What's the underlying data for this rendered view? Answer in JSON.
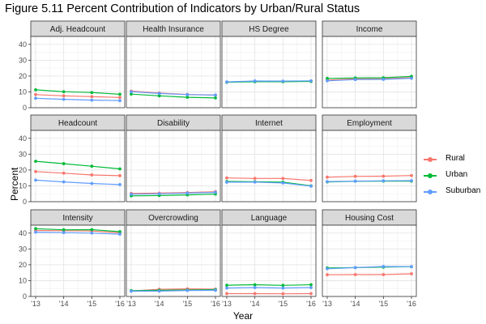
{
  "title": "Figure 5.11 Percent Contribution of Indicators by Urban/Rural Status",
  "colors": {
    "Rural": "#F8766D",
    "Urban": "#00BA38",
    "Suburban": "#619CFF"
  },
  "legend": [
    {
      "name": "Rural",
      "color": "#F8766D"
    },
    {
      "name": "Urban",
      "color": "#00BA38"
    },
    {
      "name": "Suburban",
      "color": "#619CFF"
    }
  ],
  "chart_data": {
    "type": "line",
    "facet": "grid 3x4",
    "xlabel": "Year",
    "ylabel": "Percent",
    "x": [
      "'13",
      "'14",
      "'15",
      "'16"
    ],
    "xticks": [
      "'13",
      "'14",
      "'15",
      "'16"
    ],
    "ylim": [
      0,
      45
    ],
    "yticks": [
      "0",
      "10",
      "20",
      "30",
      "40"
    ],
    "grid": true,
    "legend_position": "right",
    "panels": [
      {
        "name": "Adj. Headcount",
        "series": [
          {
            "name": "Rural",
            "values": [
              8.3,
              7.5,
              7.0,
              6.5
            ]
          },
          {
            "name": "Urban",
            "values": [
              11.3,
              10.1,
              9.6,
              8.5
            ]
          },
          {
            "name": "Suburban",
            "values": [
              6.0,
              5.3,
              4.8,
              4.5
            ]
          }
        ]
      },
      {
        "name": "Health Insurance",
        "series": [
          {
            "name": "Rural",
            "values": [
              10.5,
              9.3,
              8.4,
              8.0
            ]
          },
          {
            "name": "Urban",
            "values": [
              8.6,
              7.5,
              6.6,
              6.2
            ]
          },
          {
            "name": "Suburban",
            "values": [
              10.1,
              9.0,
              8.3,
              8.0
            ]
          }
        ]
      },
      {
        "name": "HS Degree",
        "series": [
          {
            "name": "Rural",
            "values": [
              16.2,
              16.6,
              16.6,
              16.8
            ]
          },
          {
            "name": "Urban",
            "values": [
              16.1,
              16.4,
              16.4,
              16.6
            ]
          },
          {
            "name": "Suburban",
            "values": [
              16.3,
              16.9,
              16.8,
              17.0
            ]
          }
        ]
      },
      {
        "name": "Income",
        "series": [
          {
            "name": "Rural",
            "values": [
              17.5,
              18.2,
              18.3,
              19.0
            ]
          },
          {
            "name": "Urban",
            "values": [
              18.5,
              18.8,
              18.9,
              19.8
            ]
          },
          {
            "name": "Suburban",
            "values": [
              17.0,
              17.8,
              17.9,
              18.6
            ]
          }
        ]
      },
      {
        "name": "Headcount",
        "series": [
          {
            "name": "Rural",
            "values": [
              19.0,
              18.0,
              16.9,
              16.4
            ]
          },
          {
            "name": "Urban",
            "values": [
              25.5,
              24.0,
              22.4,
              20.7
            ]
          },
          {
            "name": "Suburban",
            "values": [
              13.6,
              12.5,
              11.5,
              10.8
            ]
          }
        ]
      },
      {
        "name": "Disability",
        "series": [
          {
            "name": "Rural",
            "values": [
              5.2,
              5.4,
              5.8,
              6.3
            ]
          },
          {
            "name": "Urban",
            "values": [
              3.7,
              3.9,
              4.3,
              4.8
            ]
          },
          {
            "name": "Suburban",
            "values": [
              4.7,
              5.0,
              5.4,
              5.9
            ]
          }
        ]
      },
      {
        "name": "Internet",
        "series": [
          {
            "name": "Rural",
            "values": [
              15.0,
              14.7,
              14.7,
              13.4
            ]
          },
          {
            "name": "Urban",
            "values": [
              12.8,
              12.6,
              12.3,
              10.0
            ]
          },
          {
            "name": "Suburban",
            "values": [
              12.3,
              12.4,
              11.8,
              9.8
            ]
          }
        ]
      },
      {
        "name": "Employment",
        "series": [
          {
            "name": "Rural",
            "values": [
              15.5,
              16.0,
              16.1,
              16.5
            ]
          },
          {
            "name": "Urban",
            "values": [
              12.5,
              12.9,
              13.0,
              13.0
            ]
          },
          {
            "name": "Suburban",
            "values": [
              12.7,
              13.0,
              13.2,
              13.3
            ]
          }
        ]
      },
      {
        "name": "Intensity",
        "series": [
          {
            "name": "Rural",
            "values": [
              41.7,
              41.5,
              41.3,
              40.2
            ]
          },
          {
            "name": "Urban",
            "values": [
              42.8,
              42.1,
              42.2,
              40.9
            ]
          },
          {
            "name": "Suburban",
            "values": [
              40.6,
              40.3,
              40.0,
              39.3
            ]
          }
        ]
      },
      {
        "name": "Overcrowding",
        "series": [
          {
            "name": "Rural",
            "values": [
              3.5,
              4.5,
              4.8,
              4.6
            ]
          },
          {
            "name": "Urban",
            "values": [
              3.7,
              3.9,
              4.1,
              4.3
            ]
          },
          {
            "name": "Suburban",
            "values": [
              3.3,
              3.4,
              3.8,
              3.9
            ]
          }
        ]
      },
      {
        "name": "Language",
        "series": [
          {
            "name": "Rural",
            "values": [
              1.8,
              1.8,
              1.7,
              1.8
            ]
          },
          {
            "name": "Urban",
            "values": [
              7.1,
              7.4,
              7.0,
              7.4
            ]
          },
          {
            "name": "Suburban",
            "values": [
              5.3,
              5.6,
              5.3,
              5.6
            ]
          }
        ]
      },
      {
        "name": "Housing Cost",
        "series": [
          {
            "name": "Rural",
            "values": [
              13.7,
              13.8,
              13.8,
              14.3
            ]
          },
          {
            "name": "Urban",
            "values": [
              18.0,
              18.2,
              18.5,
              18.8
            ]
          },
          {
            "name": "Suburban",
            "values": [
              17.5,
              18.2,
              18.9,
              18.8
            ]
          }
        ]
      }
    ]
  }
}
